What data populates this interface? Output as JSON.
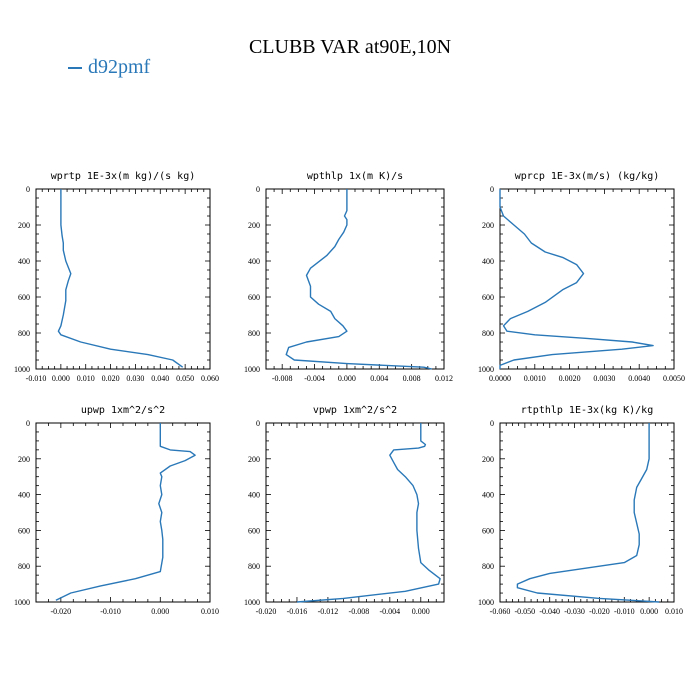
{
  "figure": {
    "title": "CLUBB VAR at90E,10N",
    "legend": [
      {
        "label": "d92pmf",
        "color": "#2a78b8"
      }
    ]
  },
  "chart_data": [
    {
      "type": "line",
      "title": "wprtp  1E-3x(m kg)/(s kg)",
      "xlim": [
        -0.01,
        0.06
      ],
      "ylim": [
        0,
        1000
      ],
      "y_inverted": true,
      "xticks": [
        "-0.010",
        "0.000",
        "0.010",
        "0.020",
        "0.030",
        "0.040",
        "0.050",
        "0.060"
      ],
      "xtick_values": [
        -0.01,
        0,
        0.01,
        0.02,
        0.03,
        0.04,
        0.05,
        0.06
      ],
      "yticks": [
        0,
        200,
        400,
        600,
        800,
        1000
      ],
      "series": [
        {
          "name": "d92pmf",
          "color": "#2a78b8",
          "x": [
            0.0,
            0.0,
            0.0,
            0.0005,
            0.001,
            0.001,
            0.002,
            0.004,
            0.003,
            0.002,
            0.002,
            0.001,
            0.0,
            -0.001,
            0.0,
            0.008,
            0.02,
            0.035,
            0.045,
            0.049
          ],
          "y": [
            0,
            100,
            200,
            260,
            300,
            340,
            400,
            470,
            510,
            560,
            620,
            700,
            760,
            790,
            810,
            850,
            890,
            920,
            950,
            990
          ]
        }
      ]
    },
    {
      "type": "line",
      "title": "wpthlp  1x(m K)/s",
      "xlim": [
        -0.01,
        0.012
      ],
      "ylim": [
        0,
        1000
      ],
      "y_inverted": true,
      "xticks": [
        "-0.008",
        "-0.004",
        "0.000",
        "0.004",
        "0.008",
        "0.012"
      ],
      "xtick_values": [
        -0.008,
        -0.004,
        0,
        0.004,
        0.008,
        0.012
      ],
      "yticks": [
        0,
        200,
        400,
        600,
        800,
        1000
      ],
      "series": [
        {
          "name": "d92pmf",
          "color": "#2a78b8",
          "x": [
            0.0,
            0.0,
            0.0,
            -0.0003,
            0.0,
            0.0,
            -0.0004,
            -0.001,
            -0.0015,
            -0.0025,
            -0.0045,
            -0.005,
            -0.0045,
            -0.0045,
            -0.0035,
            -0.002,
            -0.0015,
            -0.0005,
            0.0,
            -0.001,
            -0.005,
            -0.0072,
            -0.0075,
            -0.0065,
            0.0,
            0.0095,
            0.0105
          ],
          "y": [
            0,
            80,
            120,
            150,
            170,
            200,
            240,
            280,
            320,
            370,
            440,
            480,
            540,
            600,
            640,
            680,
            720,
            760,
            790,
            820,
            850,
            880,
            920,
            950,
            970,
            990,
            1000
          ]
        }
      ]
    },
    {
      "type": "line",
      "title": "wprcp  1E-3x(m/s) (kg/kg)",
      "xlim": [
        0.0,
        0.005
      ],
      "ylim": [
        0,
        1000
      ],
      "y_inverted": true,
      "xticks": [
        "0.0000",
        "0.0010",
        "0.0020",
        "0.0030",
        "0.0040",
        "0.0050"
      ],
      "xtick_values": [
        0,
        0.001,
        0.002,
        0.003,
        0.004,
        0.005
      ],
      "yticks": [
        0,
        200,
        400,
        600,
        800,
        1000
      ],
      "series": [
        {
          "name": "d92pmf",
          "color": "#2a78b8",
          "x": [
            0.0,
            0.0,
            0.0001,
            0.0004,
            0.0007,
            0.0009,
            0.0013,
            0.0018,
            0.0022,
            0.0024,
            0.0022,
            0.0018,
            0.0013,
            0.0008,
            0.0003,
            0.0001,
            0.0002,
            0.001,
            0.0025,
            0.0038,
            0.0044,
            0.0035,
            0.0015,
            0.0004,
            0.0,
            0.0
          ],
          "y": [
            0,
            100,
            150,
            200,
            250,
            300,
            350,
            380,
            420,
            470,
            520,
            560,
            630,
            680,
            720,
            760,
            790,
            810,
            830,
            850,
            870,
            890,
            920,
            950,
            980,
            1000
          ]
        }
      ]
    },
    {
      "type": "line",
      "title": "upwp  1xm^2/s^2",
      "xlim": [
        -0.025,
        0.01
      ],
      "ylim": [
        0,
        1000
      ],
      "y_inverted": true,
      "xticks": [
        "-0.020",
        "-0.010",
        "0.000",
        "0.010"
      ],
      "xtick_values": [
        -0.02,
        -0.01,
        0,
        0.01
      ],
      "yticks": [
        0,
        200,
        400,
        600,
        800,
        1000
      ],
      "series": [
        {
          "name": "d92pmf",
          "color": "#2a78b8",
          "x": [
            0.0,
            0.0,
            0.0,
            0.002,
            0.006,
            0.007,
            0.005,
            0.002,
            0.0,
            0.0003,
            0.0,
            0.0003,
            -0.0003,
            0.0003,
            0.0,
            0.0003,
            0.0005,
            0.0005,
            0.0,
            -0.005,
            -0.012,
            -0.018,
            -0.021
          ],
          "y": [
            0,
            100,
            130,
            150,
            160,
            180,
            210,
            240,
            280,
            300,
            350,
            400,
            450,
            500,
            550,
            600,
            650,
            750,
            830,
            870,
            910,
            950,
            990
          ]
        }
      ]
    },
    {
      "type": "line",
      "title": "vpwp  1xm^2/s^2",
      "xlim": [
        -0.02,
        0.003
      ],
      "ylim": [
        0,
        1000
      ],
      "y_inverted": true,
      "xticks": [
        "-0.020",
        "-0.016",
        "-0.012",
        "-0.008",
        "-0.004",
        "0.000"
      ],
      "xtick_values": [
        -0.02,
        -0.016,
        -0.012,
        -0.008,
        -0.004,
        0
      ],
      "yticks": [
        0,
        200,
        400,
        600,
        800,
        1000
      ],
      "series": [
        {
          "name": "d92pmf",
          "color": "#2a78b8",
          "x": [
            0.0,
            0.0,
            0.0,
            0.0006,
            0.0005,
            -0.0003,
            -0.0035,
            -0.004,
            -0.0035,
            -0.003,
            -0.002,
            -0.001,
            -0.0005,
            -0.0003,
            -0.0005,
            -0.0005,
            -0.0005,
            -0.0003,
            0.0,
            0.001,
            0.0025,
            0.0023,
            -0.002,
            -0.01,
            -0.016
          ],
          "y": [
            0,
            50,
            100,
            120,
            130,
            140,
            150,
            180,
            220,
            260,
            300,
            350,
            400,
            450,
            500,
            550,
            600,
            700,
            780,
            820,
            870,
            900,
            940,
            980,
            1000
          ]
        }
      ]
    },
    {
      "type": "line",
      "title": "rtpthlp  1E-3x(kg K)/kg",
      "xlim": [
        -0.06,
        0.01
      ],
      "ylim": [
        0,
        1000
      ],
      "y_inverted": true,
      "xticks": [
        "-0.060",
        "-0.050",
        "-0.040",
        "-0.030",
        "-0.020",
        "-0.010",
        "0.000",
        "0.010"
      ],
      "xtick_values": [
        -0.06,
        -0.05,
        -0.04,
        -0.03,
        -0.02,
        -0.01,
        0,
        0.01
      ],
      "yticks": [
        0,
        200,
        400,
        600,
        800,
        1000
      ],
      "series": [
        {
          "name": "d92pmf",
          "color": "#2a78b8",
          "x": [
            0.0,
            0.0,
            0.0,
            -0.001,
            -0.003,
            -0.005,
            -0.006,
            -0.006,
            -0.005,
            -0.004,
            -0.004,
            -0.005,
            -0.01,
            -0.02,
            -0.04,
            -0.048,
            -0.053,
            -0.053,
            -0.045,
            -0.02,
            0.004
          ],
          "y": [
            0,
            100,
            200,
            260,
            310,
            360,
            430,
            500,
            560,
            620,
            680,
            740,
            780,
            800,
            840,
            870,
            900,
            920,
            950,
            980,
            1000
          ]
        }
      ]
    }
  ]
}
